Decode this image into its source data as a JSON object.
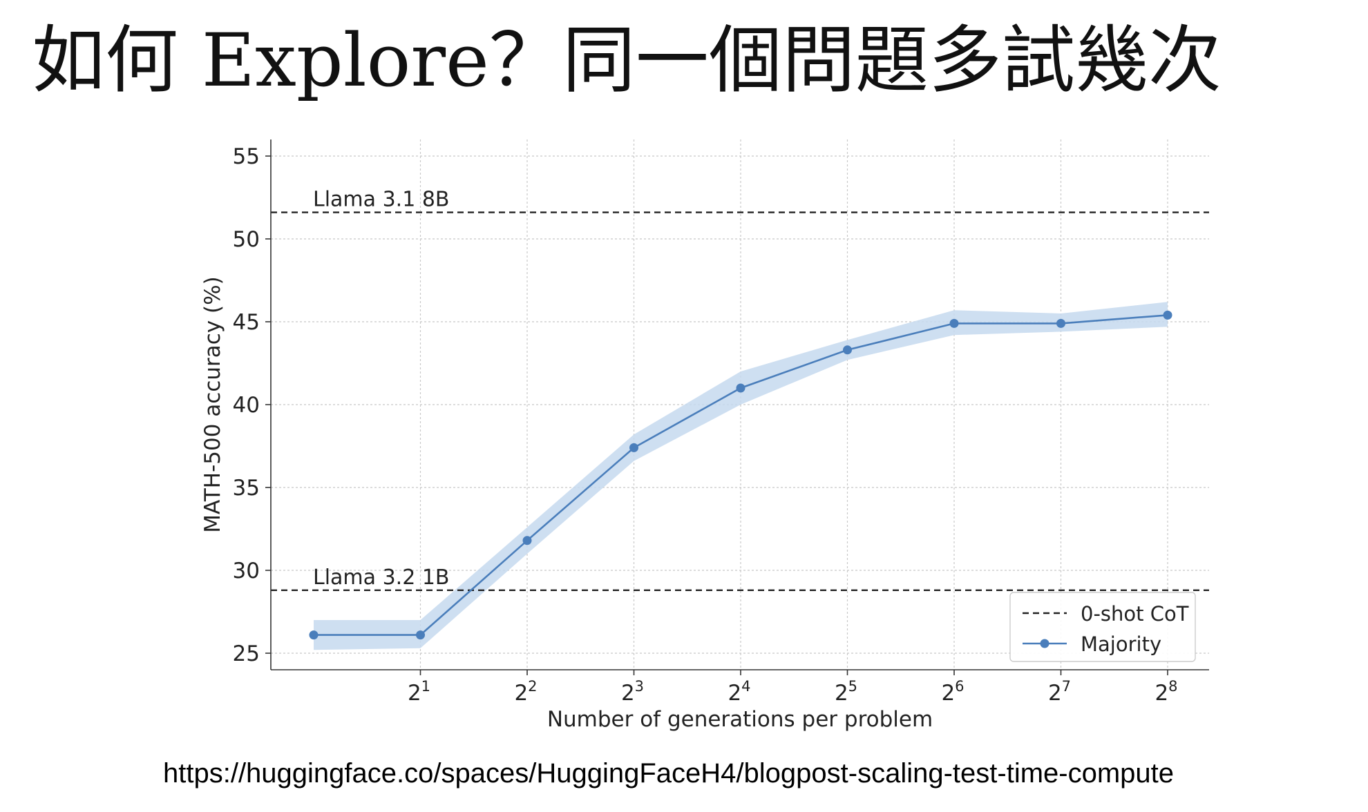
{
  "slide": {
    "title": "如何 Explore？同一個問題多試幾次",
    "source_url": "https://huggingface.co/spaces/HuggingFaceH4/blogpost-scaling-test-time-compute"
  },
  "chart_data": {
    "type": "line",
    "xlabel": "Number of generations per problem",
    "ylabel": "MATH-500 accuracy (%)",
    "x_scale": "log2",
    "xlim": [
      1,
      256
    ],
    "x_ticks": [
      2,
      4,
      8,
      16,
      32,
      64,
      128,
      256
    ],
    "x_tick_labels": [
      {
        "base": "2",
        "exp": "1"
      },
      {
        "base": "2",
        "exp": "2"
      },
      {
        "base": "2",
        "exp": "3"
      },
      {
        "base": "2",
        "exp": "4"
      },
      {
        "base": "2",
        "exp": "5"
      },
      {
        "base": "2",
        "exp": "6"
      },
      {
        "base": "2",
        "exp": "7"
      },
      {
        "base": "2",
        "exp": "8"
      }
    ],
    "ylim": [
      24,
      56
    ],
    "y_ticks": [
      25,
      30,
      35,
      40,
      45,
      50,
      55
    ],
    "grid": true,
    "legend_position": "bottom-right",
    "colors": {
      "majority": "#4a7ebb",
      "band": "#c6d9ee",
      "reference": "#222222"
    },
    "series": [
      {
        "name": "Majority",
        "x": [
          1,
          2,
          4,
          8,
          16,
          32,
          64,
          128,
          256
        ],
        "y": [
          26.1,
          26.1,
          31.8,
          37.4,
          41.0,
          43.3,
          44.9,
          44.9,
          45.4
        ],
        "band_low": [
          25.2,
          25.3,
          31.0,
          36.6,
          40.0,
          42.7,
          44.2,
          44.4,
          44.7
        ],
        "band_high": [
          27.0,
          27.0,
          32.6,
          38.2,
          42.0,
          43.9,
          45.7,
          45.5,
          46.2
        ]
      }
    ],
    "reference_lines": [
      {
        "label": "Llama 3.1 8B",
        "y": 51.6
      },
      {
        "label": "Llama 3.2 1B",
        "y": 28.8
      }
    ],
    "legend": [
      {
        "label": "0-shot CoT",
        "style": "dashed"
      },
      {
        "label": "Majority",
        "style": "line-marker"
      }
    ]
  }
}
